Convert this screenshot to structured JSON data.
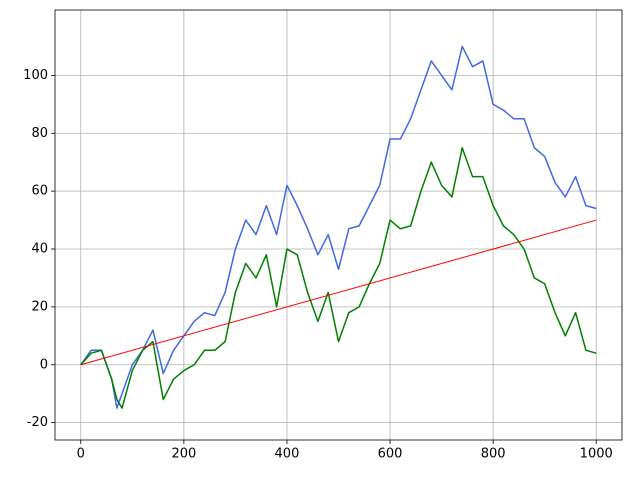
{
  "chart_data": {
    "type": "line",
    "x": [
      0,
      20,
      40,
      60,
      70,
      80,
      100,
      120,
      140,
      160,
      180,
      200,
      220,
      240,
      260,
      280,
      300,
      320,
      340,
      360,
      380,
      400,
      420,
      440,
      460,
      480,
      500,
      520,
      540,
      560,
      580,
      600,
      620,
      640,
      660,
      680,
      700,
      720,
      740,
      760,
      780,
      800,
      820,
      840,
      860,
      880,
      900,
      920,
      940,
      960,
      980,
      1000
    ],
    "series": [
      {
        "color": "#4169e1",
        "values": [
          0,
          5,
          5,
          -5,
          -15,
          -10,
          0,
          5,
          12,
          -3,
          5,
          10,
          15,
          18,
          17,
          25,
          40,
          50,
          45,
          55,
          45,
          62,
          55,
          47,
          38,
          45,
          33,
          47,
          48,
          55,
          62,
          78,
          78,
          85,
          95,
          105,
          100,
          95,
          110,
          103,
          105,
          90,
          88,
          85,
          85,
          75,
          72,
          63,
          58,
          65,
          55,
          54
        ]
      },
      {
        "color": "#008000",
        "values": [
          0,
          4,
          5,
          -5,
          -12,
          -15,
          -2,
          5,
          8,
          -12,
          -5,
          -2,
          0,
          5,
          5,
          8,
          25,
          35,
          30,
          38,
          20,
          40,
          38,
          25,
          15,
          25,
          8,
          18,
          20,
          28,
          35,
          50,
          47,
          48,
          60,
          70,
          62,
          58,
          75,
          65,
          65,
          55,
          48,
          45,
          40,
          30,
          28,
          18,
          10,
          18,
          5,
          4
        ]
      },
      {
        "color": "#ff0000",
        "x": [
          0,
          1000
        ],
        "values": [
          0,
          50
        ]
      }
    ],
    "xlim": [
      -50,
      1050
    ],
    "ylim": [
      -26,
      122.6
    ],
    "xticks": [
      0,
      200,
      400,
      600,
      800,
      1000
    ],
    "yticks": [
      -20,
      0,
      20,
      40,
      60,
      80,
      100
    ],
    "grid": true
  }
}
